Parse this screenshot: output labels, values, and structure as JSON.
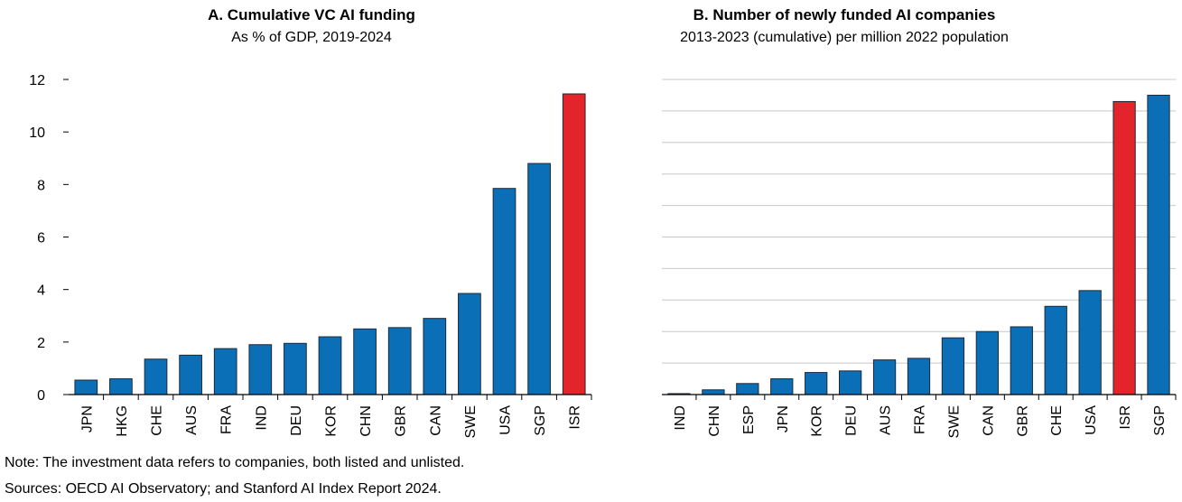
{
  "chart_data": [
    {
      "type": "bar",
      "title": "A. Cumulative VC AI funding",
      "subtitle": "As % of GDP, 2019-2024",
      "categories": [
        "JPN",
        "HKG",
        "CHE",
        "AUS",
        "FRA",
        "IND",
        "DEU",
        "KOR",
        "CHN",
        "GBR",
        "CAN",
        "SWE",
        "USA",
        "SGP",
        "ISR"
      ],
      "values": [
        0.55,
        0.6,
        1.35,
        1.5,
        1.75,
        1.9,
        1.95,
        2.2,
        2.5,
        2.55,
        2.9,
        3.85,
        7.85,
        8.8,
        11.45
      ],
      "colors": [
        "#0b6fb8",
        "#0b6fb8",
        "#0b6fb8",
        "#0b6fb8",
        "#0b6fb8",
        "#0b6fb8",
        "#0b6fb8",
        "#0b6fb8",
        "#0b6fb8",
        "#0b6fb8",
        "#0b6fb8",
        "#0b6fb8",
        "#0b6fb8",
        "#0b6fb8",
        "#e3242b"
      ],
      "ylim": [
        0,
        12
      ],
      "yticks": [
        0,
        2,
        4,
        6,
        8,
        10,
        12
      ],
      "grid": false,
      "ytick_labels": true,
      "note": "Note: The investment data refers to companies, both listed and unlisted.",
      "sources": "Sources: OECD AI Observatory; and Stanford AI Index Report 2024."
    },
    {
      "type": "bar",
      "title": "B. Number of newly funded AI companies",
      "subtitle": "2013-2023 (cumulative) per million 2022 population",
      "categories": [
        "IND",
        "CHN",
        "ESP",
        "JPN",
        "KOR",
        "DEU",
        "AUS",
        "FRA",
        "SWE",
        "CAN",
        "GBR",
        "CHE",
        "USA",
        "ISR",
        "SGP"
      ],
      "values": [
        0.03,
        0.15,
        0.35,
        0.5,
        0.7,
        0.75,
        1.1,
        1.15,
        1.8,
        2.0,
        2.15,
        2.8,
        3.3,
        9.3,
        9.5
      ],
      "colors": [
        "#0b6fb8",
        "#0b6fb8",
        "#0b6fb8",
        "#0b6fb8",
        "#0b6fb8",
        "#0b6fb8",
        "#0b6fb8",
        "#0b6fb8",
        "#0b6fb8",
        "#0b6fb8",
        "#0b6fb8",
        "#0b6fb8",
        "#0b6fb8",
        "#e3242b",
        "#0b6fb8"
      ],
      "ylim": [
        0,
        10
      ],
      "yticks": [
        0,
        1,
        2,
        3,
        4,
        5,
        6,
        7,
        8,
        9,
        10
      ],
      "grid": true,
      "ytick_labels": false
    }
  ]
}
